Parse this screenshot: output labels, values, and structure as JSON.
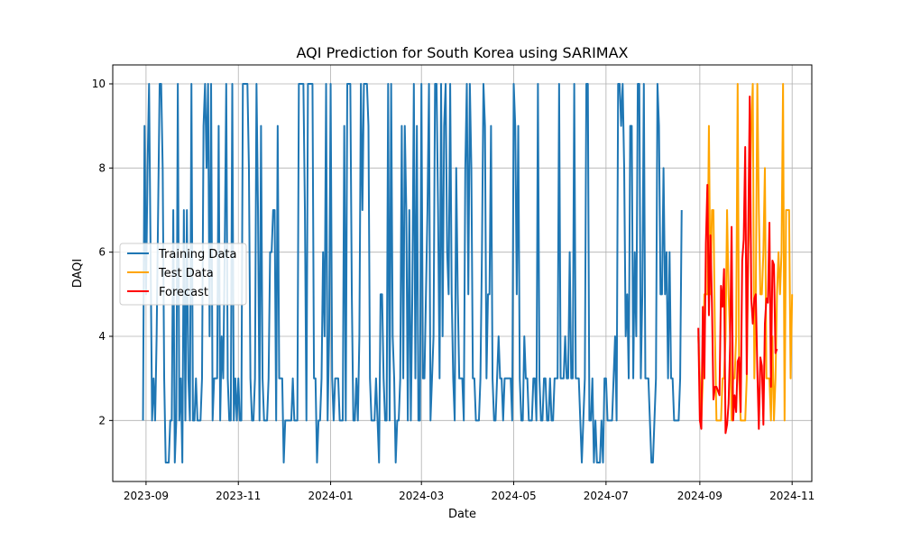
{
  "chart_data": {
    "type": "line",
    "title": "AQI Prediction for South Korea using SARIMAX",
    "xlabel": "Date",
    "ylabel": "DAQI",
    "xlim": [
      "2023-08-10",
      "2024-11-14"
    ],
    "ylim": [
      0.55,
      10.45
    ],
    "grid": true,
    "legend_position": "center-left",
    "x_ticks": [
      "2023-09",
      "2023-11",
      "2024-01",
      "2024-03",
      "2024-05",
      "2024-07",
      "2024-09",
      "2024-11"
    ],
    "y_ticks": [
      2,
      4,
      6,
      8,
      10
    ],
    "x_tick_dates": [
      "2023-09-01",
      "2023-11-01",
      "2024-01-01",
      "2024-03-01",
      "2024-05-01",
      "2024-07-01",
      "2024-09-01",
      "2024-11-01"
    ],
    "series": [
      {
        "name": "Training Data",
        "color": "#1f77b4",
        "start_date": "2023-08-30",
        "values": [
          2,
          9,
          5,
          8,
          10,
          6,
          2,
          3,
          2,
          4,
          7,
          10,
          10,
          8,
          3,
          1,
          1,
          1,
          2,
          2,
          7,
          1,
          2,
          10,
          2,
          3,
          1,
          7,
          2,
          7,
          3,
          2,
          10,
          2,
          2,
          3,
          2,
          2,
          2,
          3,
          9,
          10,
          8,
          10,
          4,
          10,
          2,
          3,
          3,
          3,
          9,
          2,
          4,
          3,
          6,
          10,
          3,
          2,
          2,
          10,
          2,
          3,
          2,
          3,
          2,
          2,
          10,
          10,
          10,
          10,
          8,
          3,
          2,
          2,
          3,
          10,
          7,
          2,
          9,
          3,
          2,
          2,
          2,
          3,
          6,
          6,
          7,
          7,
          2,
          9,
          3,
          3,
          3,
          1,
          2,
          2,
          2,
          2,
          2,
          3,
          2,
          2,
          2,
          10,
          10,
          10,
          10,
          7,
          2,
          10,
          10,
          10,
          10,
          3,
          3,
          1,
          2,
          2,
          3,
          6,
          4,
          10,
          2,
          4,
          10,
          3,
          2,
          3,
          3,
          3,
          2,
          2,
          2,
          9,
          2,
          10,
          10,
          10,
          5,
          2,
          2,
          3,
          2,
          4,
          10,
          7,
          10,
          10,
          10,
          9,
          3,
          2,
          2,
          2,
          3,
          2,
          1,
          5,
          5,
          3,
          2,
          2,
          10,
          2,
          10,
          4,
          3,
          1,
          2,
          2,
          3,
          9,
          3,
          9,
          7,
          2,
          7,
          2,
          5,
          10,
          3,
          9,
          2,
          2,
          10,
          3,
          3,
          5,
          7,
          10,
          2,
          3,
          4,
          10,
          10,
          7,
          3,
          10,
          4,
          9,
          10,
          6,
          5,
          10,
          5,
          3,
          2,
          8,
          5,
          3,
          3,
          3,
          2,
          8,
          10,
          5,
          10,
          8,
          3,
          3,
          2,
          2,
          2,
          3,
          6,
          10,
          9,
          3,
          5,
          5,
          9,
          3,
          2,
          2,
          3,
          4,
          3,
          3,
          2,
          3,
          3,
          3,
          3,
          3,
          2,
          10,
          9,
          5,
          9,
          3,
          2,
          2,
          4,
          3,
          3,
          2,
          2,
          2,
          3,
          3,
          2,
          10,
          3,
          2,
          2,
          3,
          3,
          2,
          2,
          3,
          2,
          2,
          3,
          3,
          3,
          10,
          3,
          3,
          3,
          4,
          3,
          3,
          6,
          3,
          3,
          10,
          3,
          3,
          3,
          2,
          1,
          2,
          3,
          10,
          10,
          2,
          2,
          3,
          1,
          2,
          1,
          1,
          1,
          2,
          1,
          3,
          3,
          2,
          2,
          2,
          2,
          3,
          4,
          2,
          10,
          10,
          9,
          10,
          8,
          4,
          5,
          3,
          9,
          9,
          3,
          6,
          4,
          10,
          10,
          3,
          5,
          10,
          3,
          3,
          3,
          2,
          1,
          1,
          2,
          3,
          10,
          9,
          5,
          5,
          8,
          5,
          6,
          3,
          6,
          3,
          3,
          2,
          2,
          2,
          2,
          3,
          7
        ]
      },
      {
        "name": "Test Data",
        "color": "#ffa500",
        "start_date": "2024-08-31",
        "values": [
          4,
          3,
          2,
          3,
          5,
          5,
          5,
          9,
          5,
          7,
          7,
          4,
          2,
          2,
          2,
          2,
          3,
          3,
          4,
          7,
          5,
          4,
          2,
          3,
          3,
          4,
          10,
          3,
          2,
          2,
          2,
          2,
          3,
          6,
          7,
          9,
          10,
          3,
          5,
          10,
          7,
          5,
          5,
          6,
          8,
          3,
          3,
          3,
          2,
          4,
          2,
          3,
          5,
          6,
          5,
          6,
          10,
          2,
          7,
          7,
          7,
          3,
          5
        ]
      },
      {
        "name": "Forecast",
        "color": "#ff0000",
        "start_date": "2024-08-31",
        "values": [
          4.2,
          2.0,
          1.8,
          4.7,
          3.0,
          6.2,
          7.6,
          4.5,
          6.4,
          4.8,
          2.5,
          2.8,
          2.8,
          2.7,
          2.6,
          5.2,
          4.7,
          5.6,
          1.7,
          1.9,
          2.4,
          3.8,
          6.6,
          2.0,
          2.6,
          2.2,
          3.4,
          3.5,
          2.2,
          5.8,
          6.3,
          8.5,
          3.1,
          6.5,
          9.7,
          4.9,
          4.3,
          4.9,
          5.0,
          3.2,
          1.8,
          3.5,
          3.3,
          1.9,
          4.3,
          4.9,
          4.8,
          6.7,
          2.8,
          5.8,
          5.7,
          3.6,
          3.7
        ]
      }
    ]
  }
}
